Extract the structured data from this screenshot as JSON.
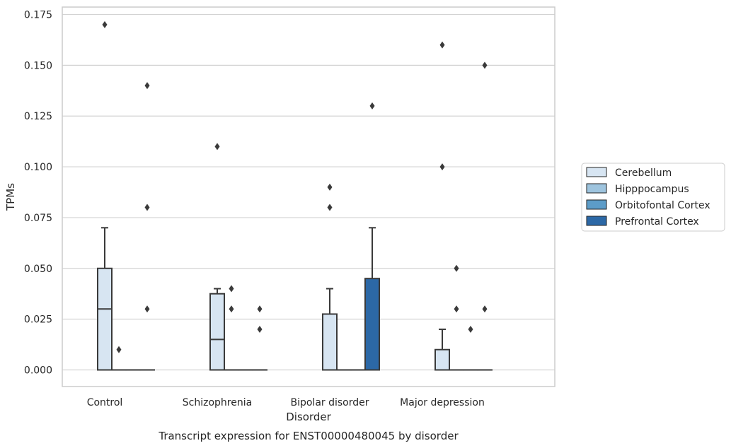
{
  "caption": "Transcript expression for ENST00000480045 by disorder",
  "colors": {
    "Cerebellum": "#d7e5f2",
    "Hipppocampus": "#9ec4de",
    "Orbitofontal Cortex": "#5c9cc8",
    "Prefrontal Cortex": "#2c68a6",
    "box_edge": "#3a3a3a",
    "grid": "#d3d3d3",
    "frame": "#cccccc"
  },
  "chart_data": {
    "type": "box",
    "xlabel": "Disorder",
    "ylabel": "TPMs",
    "ylim": [
      -0.0085,
      0.1785
    ],
    "yticks": [
      "0.000",
      "0.025",
      "0.050",
      "0.075",
      "0.100",
      "0.125",
      "0.150",
      "0.175"
    ],
    "grid": true,
    "legend_placement": "right-outside",
    "categories": [
      "Control",
      "Schizophrenia",
      "Bipolar disorder",
      "Major depression"
    ],
    "series": [
      {
        "name": "Cerebellum",
        "boxes": [
          {
            "whislo": 0.0,
            "q1": 0.0,
            "med": 0.03,
            "q3": 0.05,
            "whishi": 0.07,
            "fliers": [
              0.17
            ]
          },
          {
            "whislo": 0.0,
            "q1": 0.0,
            "med": 0.015,
            "q3": 0.0375,
            "whishi": 0.04,
            "fliers": [
              0.11
            ]
          },
          {
            "whislo": 0.0,
            "q1": 0.0,
            "med": 0.0,
            "q3": 0.0275,
            "whishi": 0.04,
            "fliers": [
              0.08,
              0.09
            ]
          },
          {
            "whislo": 0.0,
            "q1": 0.0,
            "med": 0.0,
            "q3": 0.01,
            "whishi": 0.02,
            "fliers": [
              0.1,
              0.16
            ]
          }
        ]
      },
      {
        "name": "Hipppocampus",
        "boxes": [
          {
            "whislo": 0.0,
            "q1": 0.0,
            "med": 0.0,
            "q3": 0.0,
            "whishi": 0.0,
            "fliers": [
              0.01
            ]
          },
          {
            "whislo": 0.0,
            "q1": 0.0,
            "med": 0.0,
            "q3": 0.0,
            "whishi": 0.0,
            "fliers": [
              0.03,
              0.04
            ]
          },
          {
            "whislo": 0.0,
            "q1": 0.0,
            "med": 0.0,
            "q3": 0.0,
            "whishi": 0.0,
            "fliers": []
          },
          {
            "whislo": 0.0,
            "q1": 0.0,
            "med": 0.0,
            "q3": 0.0,
            "whishi": 0.0,
            "fliers": [
              0.03,
              0.05
            ]
          }
        ]
      },
      {
        "name": "Orbitofontal Cortex",
        "boxes": [
          {
            "whislo": 0.0,
            "q1": 0.0,
            "med": 0.0,
            "q3": 0.0,
            "whishi": 0.0,
            "fliers": []
          },
          {
            "whislo": 0.0,
            "q1": 0.0,
            "med": 0.0,
            "q3": 0.0,
            "whishi": 0.0,
            "fliers": []
          },
          {
            "whislo": 0.0,
            "q1": 0.0,
            "med": 0.0,
            "q3": 0.0,
            "whishi": 0.0,
            "fliers": []
          },
          {
            "whislo": 0.0,
            "q1": 0.0,
            "med": 0.0,
            "q3": 0.0,
            "whishi": 0.0,
            "fliers": [
              0.02
            ]
          }
        ]
      },
      {
        "name": "Prefrontal Cortex",
        "boxes": [
          {
            "whislo": 0.0,
            "q1": 0.0,
            "med": 0.0,
            "q3": 0.0,
            "whishi": 0.0,
            "fliers": [
              0.03,
              0.08,
              0.14
            ]
          },
          {
            "whislo": 0.0,
            "q1": 0.0,
            "med": 0.0,
            "q3": 0.0,
            "whishi": 0.0,
            "fliers": [
              0.02,
              0.03
            ]
          },
          {
            "whislo": 0.0,
            "q1": 0.0,
            "med": 0.0,
            "q3": 0.045,
            "whishi": 0.07,
            "fliers": [
              0.13
            ]
          },
          {
            "whislo": 0.0,
            "q1": 0.0,
            "med": 0.0,
            "q3": 0.0,
            "whishi": 0.0,
            "fliers": [
              0.03,
              0.15
            ]
          }
        ]
      }
    ]
  }
}
